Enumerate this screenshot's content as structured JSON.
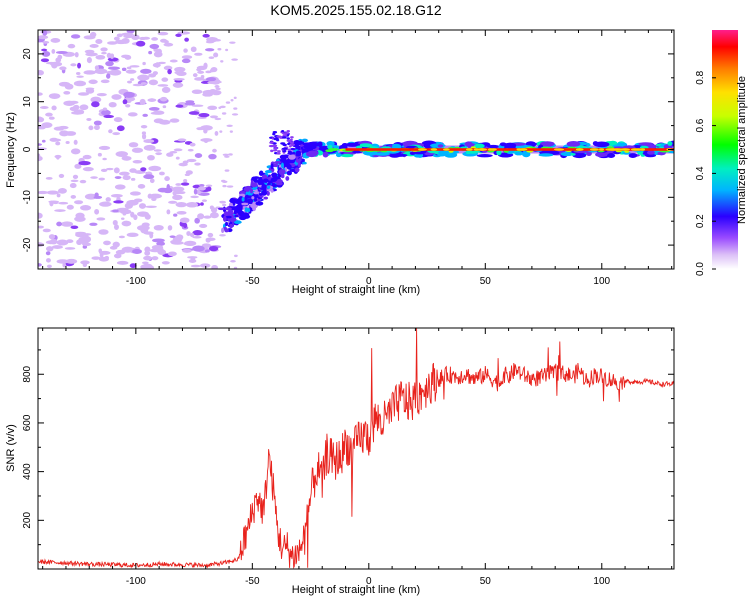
{
  "title": "KOM5.2025.155.02.18.G12",
  "chart_data": [
    {
      "type": "heatmap",
      "title": "KOM5.2025.155.02.18.G12",
      "xlabel": "Height of straight line (km)",
      "ylabel": "Frequency (Hz)",
      "xlim": [
        -142,
        131
      ],
      "ylim": [
        -25,
        25
      ],
      "x_ticks": [
        -100,
        -50,
        0,
        50,
        100
      ],
      "y_ticks": [
        -20,
        -10,
        0,
        10,
        20
      ],
      "grid": false,
      "colorbar": {
        "label": "Normalized spectral amplitude",
        "range": [
          0,
          1
        ],
        "ticks": [
          0.0,
          0.2,
          0.4,
          0.6,
          0.8
        ],
        "colormap": "rainbow"
      },
      "features": {
        "noise_region_x": [
          -142,
          -65
        ],
        "chirp_x": [
          -62,
          -28
        ],
        "chirp_freq": [
          -15,
          0
        ],
        "carrier_start_x": -28,
        "carrier_freq": 0
      }
    },
    {
      "type": "line",
      "xlabel": "Height of straight line (km)",
      "ylabel": "SNR (v/v)",
      "xlim": [
        -142,
        131
      ],
      "ylim": [
        0,
        990
      ],
      "x_ticks": [
        -100,
        -50,
        0,
        50,
        100
      ],
      "y_ticks": [
        200,
        400,
        600,
        800
      ],
      "grid": false,
      "line_color": "#e8221c",
      "x": [
        -142,
        -130,
        -120,
        -110,
        -100,
        -90,
        -80,
        -70,
        -62,
        -56,
        -52,
        -48,
        -45,
        -43,
        -41,
        -39,
        -37,
        -35,
        -33,
        -30,
        -27,
        -25,
        -22,
        -20,
        -18,
        -15,
        -12,
        -10,
        -7,
        -5,
        -2,
        0,
        3,
        6,
        10,
        14,
        18,
        22,
        26,
        30,
        34,
        38,
        42,
        45,
        48,
        50,
        53,
        56,
        58,
        60,
        63,
        66,
        70,
        75,
        80,
        85,
        88,
        90,
        93,
        95,
        97,
        100,
        103,
        106,
        110,
        115,
        120,
        125,
        131
      ],
      "y": [
        30,
        25,
        20,
        18,
        15,
        20,
        18,
        15,
        25,
        40,
        160,
        300,
        230,
        470,
        330,
        150,
        80,
        90,
        50,
        70,
        150,
        300,
        420,
        350,
        480,
        440,
        460,
        520,
        480,
        520,
        550,
        540,
        620,
        600,
        650,
        700,
        680,
        720,
        760,
        780,
        800,
        790,
        800,
        780,
        790,
        800,
        780,
        760,
        800,
        790,
        820,
        800,
        780,
        790,
        810,
        800,
        790,
        820,
        780,
        780,
        800,
        790,
        780,
        770,
        770,
        770,
        770,
        760,
        760
      ]
    }
  ]
}
